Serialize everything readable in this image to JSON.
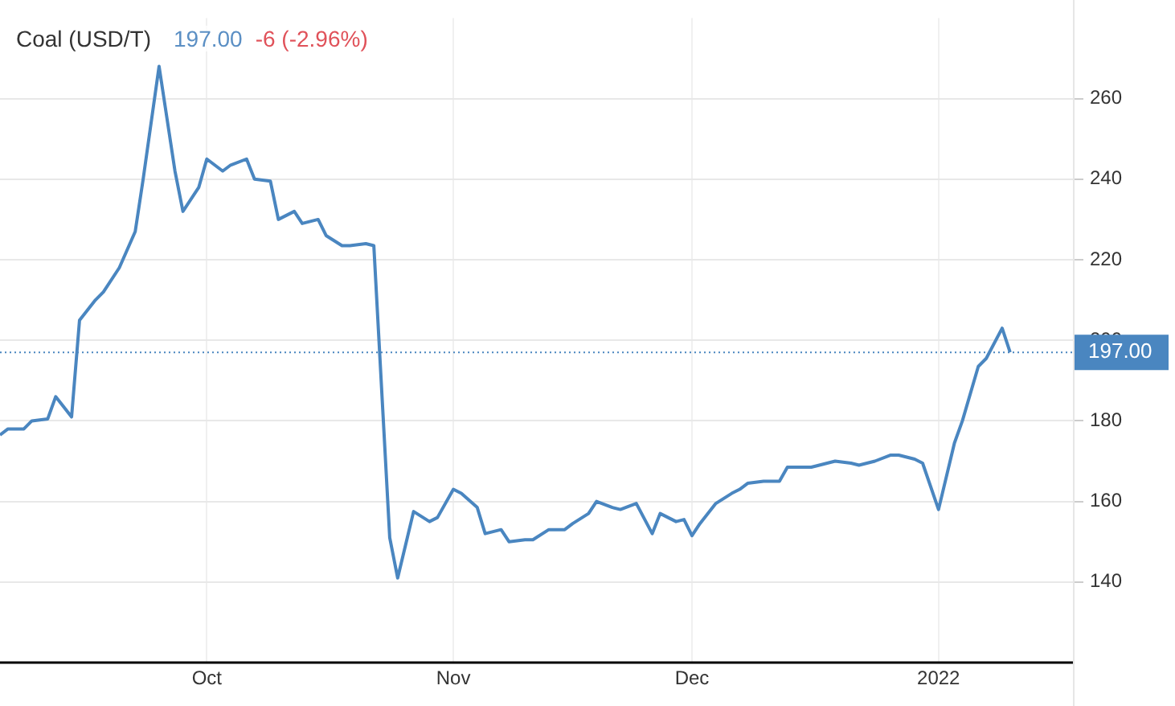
{
  "chart_data": {
    "type": "line",
    "title": "Coal (USD/T)",
    "annotations": [
      "197.00",
      "-6 (-2.96%)"
    ],
    "x": [
      "2021-09-05",
      "2021-09-06",
      "2021-09-08",
      "2021-09-09",
      "2021-09-11",
      "2021-09-12",
      "2021-09-14",
      "2021-09-15",
      "2021-09-17",
      "2021-09-18",
      "2021-09-20",
      "2021-09-22",
      "2021-09-23",
      "2021-09-25",
      "2021-09-27",
      "2021-09-28",
      "2021-09-30",
      "2021-10-01",
      "2021-10-03",
      "2021-10-04",
      "2021-10-06",
      "2021-10-07",
      "2021-10-09",
      "2021-10-10",
      "2021-10-12",
      "2021-10-13",
      "2021-10-15",
      "2021-10-16",
      "2021-10-18",
      "2021-10-19",
      "2021-10-21",
      "2021-10-22",
      "2021-10-24",
      "2021-10-25",
      "2021-10-27",
      "2021-10-29",
      "2021-10-30",
      "2021-11-01",
      "2021-11-02",
      "2021-11-04",
      "2021-11-05",
      "2021-11-07",
      "2021-11-08",
      "2021-11-10",
      "2021-11-11",
      "2021-11-13",
      "2021-11-15",
      "2021-11-16",
      "2021-11-18",
      "2021-11-19",
      "2021-11-21",
      "2021-11-22",
      "2021-11-24",
      "2021-11-26",
      "2021-11-27",
      "2021-11-29",
      "2021-11-30",
      "2021-12-01",
      "2021-12-02",
      "2021-12-04",
      "2021-12-06",
      "2021-12-07",
      "2021-12-08",
      "2021-12-10",
      "2021-12-12",
      "2021-12-13",
      "2021-12-15",
      "2021-12-16",
      "2021-12-18",
      "2021-12-19",
      "2021-12-21",
      "2021-12-22",
      "2021-12-24",
      "2021-12-26",
      "2021-12-27",
      "2021-12-29",
      "2021-12-30",
      "2022-01-01",
      "2022-01-03",
      "2022-01-04",
      "2022-01-06",
      "2022-01-07",
      "2022-01-09",
      "2022-01-10"
    ],
    "series": [
      {
        "color": "#4a86c0",
        "values": [
          176.5,
          178,
          178,
          180,
          180.5,
          186,
          181,
          205,
          210,
          212,
          218,
          227,
          240,
          268,
          242,
          232,
          238,
          245,
          242,
          243.5,
          245,
          240,
          239.5,
          230,
          232,
          229,
          230,
          226,
          223.5,
          223.5,
          224,
          223.5,
          151,
          141,
          157.5,
          155,
          156,
          163,
          162,
          158.5,
          152,
          153,
          150,
          150.5,
          150.5,
          153,
          153,
          154.5,
          157,
          160,
          158.5,
          158,
          159.5,
          152,
          157,
          155,
          155.5,
          151.5,
          154.5,
          159.5,
          162,
          163,
          164.5,
          165,
          165,
          168.5,
          168.5,
          168.5,
          169.5,
          170,
          169.5,
          169,
          170,
          171.5,
          171.5,
          170.5,
          169.5,
          158,
          174.5,
          180,
          193.5,
          195.5,
          203,
          197
        ]
      }
    ],
    "xlim": [
      "2021-09-05",
      "2022-01-18"
    ],
    "xticks": [
      {
        "value": "2021-10-01",
        "label": "Oct"
      },
      {
        "value": "2021-11-01",
        "label": "Nov"
      },
      {
        "value": "2021-12-01",
        "label": "Dec"
      },
      {
        "value": "2022-01-01",
        "label": "2022"
      }
    ],
    "ylim": [
      120,
      280
    ],
    "yticks": [
      140,
      160,
      180,
      200,
      220,
      240,
      260
    ],
    "ref_lines": [
      {
        "axis": "y",
        "value": 197,
        "label": "197.00",
        "color": "#4a86c0",
        "line_style": "dotted"
      }
    ],
    "grid": true,
    "legend": false,
    "marker": "none",
    "line_style": "solid"
  }
}
